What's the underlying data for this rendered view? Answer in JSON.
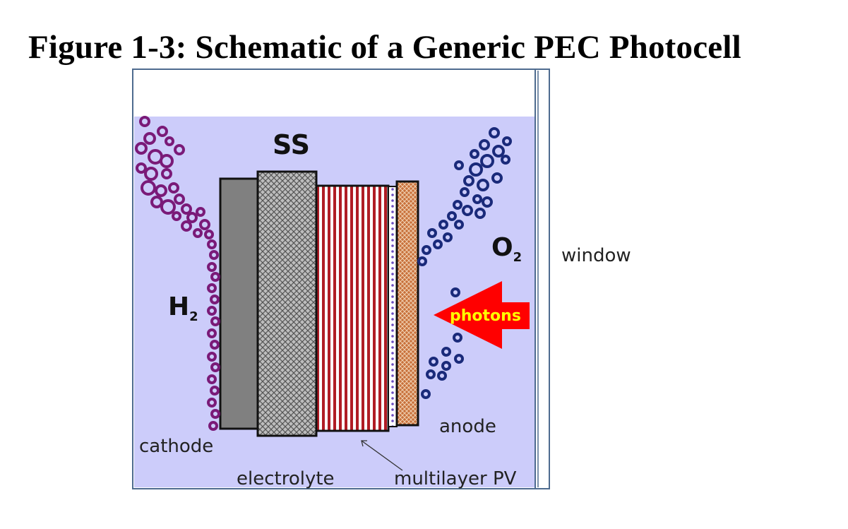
{
  "figure": {
    "title": "Figure 1-3: Schematic of a Generic PEC Photocell"
  },
  "labels": {
    "ss": "SS",
    "h2_main": "H",
    "h2_sub": "2",
    "o2_main": "O",
    "o2_sub": "2",
    "window": "window",
    "photons": "photons",
    "cathode": "cathode",
    "anode": "anode",
    "electrolyte": "electrolyte",
    "multilayer_pv": "multilayer PV"
  },
  "colors": {
    "electrolyte_fill": "#ccccfa",
    "cell_border": "#4e6b8f",
    "cathode_plate": "#808080",
    "substrate_hatch": "#b5b5b5",
    "pv_stripe_red": "#b01c24",
    "anode_layer": "#c8703a",
    "h2_bubbles": "#7a1a78",
    "o2_bubbles": "#1a2a7a",
    "photon_arrow": "#ff0000",
    "photon_text": "#ffff00"
  }
}
